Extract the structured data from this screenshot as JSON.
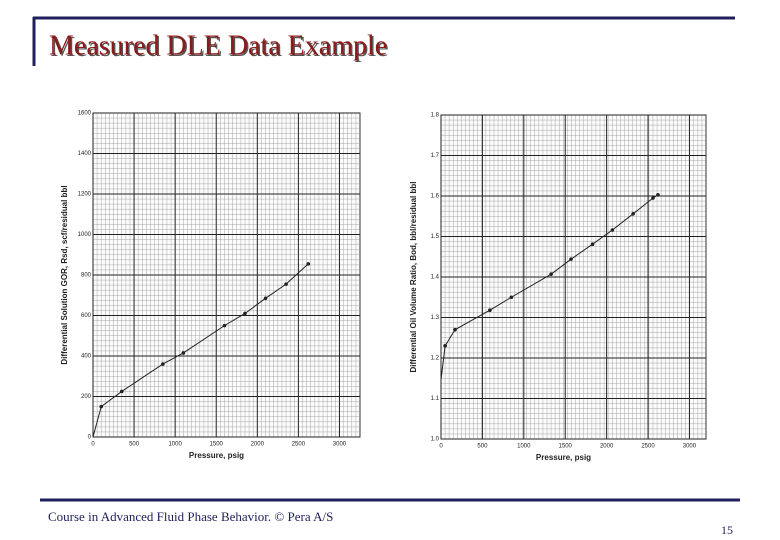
{
  "slide": {
    "title": "Measured DLE Data Example",
    "footer": "Course in Advanced Fluid Phase Behavior. © Pera A/S",
    "page": "15"
  },
  "chart_data": [
    {
      "type": "line",
      "x_label": "Pressure, psig",
      "y_label": "Differential Solution GOR, Rsd, scf/residual bbl",
      "x": [
        0,
        100,
        350,
        850,
        1100,
        1600,
        1850,
        2100,
        2350,
        2620
      ],
      "series": [
        {
          "name": "Rsd",
          "color": "#222222",
          "values": [
            0,
            150,
            225,
            360,
            415,
            550,
            610,
            685,
            755,
            855
          ]
        }
      ],
      "xlim": [
        0,
        3250
      ],
      "xticks": [
        0,
        500,
        1000,
        1500,
        2000,
        2500,
        3000
      ],
      "ylim": [
        0,
        1600
      ],
      "yticks": [
        0,
        200,
        400,
        600,
        800,
        1000,
        1200,
        1400,
        1600
      ],
      "grid": true
    },
    {
      "type": "line",
      "x_label": "Pressure, psig",
      "y_label": "Differential Oil Volume Ratio, Bod, bbl/residual bbl",
      "x": [
        0,
        50,
        170,
        590,
        850,
        1330,
        1570,
        1830,
        2070,
        2320,
        2560,
        2620
      ],
      "series": [
        {
          "name": "Bod",
          "color": "#222222",
          "values": [
            1.146,
            1.23,
            1.27,
            1.318,
            1.35,
            1.407,
            1.444,
            1.481,
            1.516,
            1.556,
            1.595,
            1.603
          ]
        }
      ],
      "xlim": [
        0,
        3200
      ],
      "xticks": [
        0,
        500,
        1000,
        1500,
        2000,
        2500,
        3000
      ],
      "ylim": [
        1,
        1.8
      ],
      "yticks": [
        {
          "value": 1,
          "label": "1.0"
        },
        1.1,
        1.2,
        1.3,
        1.4,
        1.5,
        1.6,
        1.7,
        1.8
      ],
      "grid": true
    }
  ]
}
